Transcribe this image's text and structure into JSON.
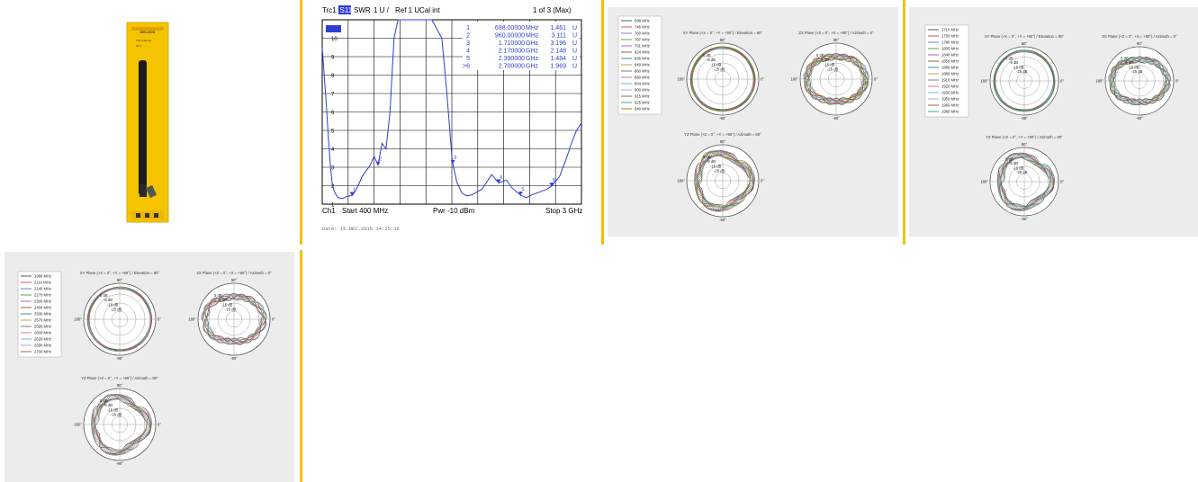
{
  "product": {
    "brand": "DELOCK",
    "name": "LTE Antenna",
    "sub": "88xxx"
  },
  "swr": {
    "header": {
      "trace": "Trc1",
      "param": "S11",
      "format": "SWR",
      "scale": "1 U /",
      "ref": "Ref 1 U",
      "cal": "Cal int",
      "page": "1 of 3 (Max)"
    },
    "footer": {
      "channel": "Ch1",
      "start": "Start 400 MHz",
      "power": "Pwr -10 dBm",
      "stop": "Stop 3 GHz"
    },
    "date": "Date: 15.DEC.2015  14:25:36"
  },
  "chart_data": [
    {
      "type": "line",
      "title": "",
      "xlabel": "",
      "ylabel": "",
      "xlim": [
        400,
        3000
      ],
      "ylim": [
        1,
        11
      ],
      "y_ticks": [
        1,
        2,
        3,
        4,
        5,
        6,
        7,
        8,
        9,
        10
      ],
      "series": [
        {
          "x": [
            400,
            420,
            440,
            460,
            480,
            500,
            520,
            540,
            560,
            600,
            640,
            680,
            698,
            720,
            760,
            800,
            840,
            880,
            920,
            960,
            1000,
            1040,
            1080,
            1120,
            1160,
            1200,
            1260,
            1300,
            1500,
            1600,
            1650,
            1700,
            1710,
            1750,
            1800,
            1850,
            1900,
            2000,
            2100,
            2170,
            2250,
            2300,
            2390,
            2450,
            2500,
            2600,
            2650,
            2700,
            2780,
            2850,
            2900,
            2950,
            3000
          ],
          "y": [
            9.5,
            8,
            6.5,
            4.8,
            3.2,
            2.1,
            1.7,
            1.5,
            1.35,
            1.3,
            1.4,
            1.45,
            1.46,
            1.6,
            2,
            2.5,
            2.8,
            3.1,
            3.6,
            3.11,
            4.3,
            4,
            6,
            10,
            11,
            11,
            11,
            11,
            11,
            10,
            7,
            3.6,
            3.2,
            2.2,
            1.6,
            1.45,
            1.5,
            1.8,
            2.6,
            2.15,
            2.3,
            1.9,
            1.48,
            1.35,
            1.5,
            1.7,
            1.8,
            1.97,
            2.5,
            3.5,
            4.3,
            5,
            5.4
          ]
        }
      ],
      "markers": [
        {
          "id": "1",
          "freq": "698.00000",
          "unit": "MHz",
          "value": "1.461",
          "vunit": "U"
        },
        {
          "id": "2",
          "freq": "960.00000",
          "unit": "MHz",
          "value": "3.111",
          "vunit": "U"
        },
        {
          "id": "3",
          "freq": "1.710000",
          "unit": "GHz",
          "value": "3.196",
          "vunit": "U"
        },
        {
          "id": "4",
          "freq": "2.170000",
          "unit": "GHz",
          "value": "2.148",
          "vunit": "U"
        },
        {
          "id": "5",
          "freq": "2.390000",
          "unit": "GHz",
          "value": "1.484",
          "vunit": "U"
        },
        {
          "id": ">6",
          "freq": "2.700000",
          "unit": "GHz",
          "value": "1.969",
          "vunit": "U"
        }
      ],
      "marker_points": [
        {
          "id": "1",
          "x": 698,
          "y": 1.461
        },
        {
          "id": "2",
          "x": 960,
          "y": 3.111
        },
        {
          "id": "3",
          "x": 1710,
          "y": 3.196
        },
        {
          "id": "4",
          "x": 2170,
          "y": 2.148
        },
        {
          "id": "5",
          "x": 2390,
          "y": 1.484
        },
        {
          "id": "6",
          "x": 2700,
          "y": 1.969
        }
      ]
    },
    {
      "type": "polar",
      "band": "low",
      "legend": [
        "698 MHz",
        "746 MHz",
        "760 MHz",
        "787 MHz",
        "791 MHz",
        "824 MHz",
        "836 MHz",
        "849 MHz",
        "860 MHz",
        "880 MHz",
        "894 MHz",
        "900 MHz",
        "915 MHz",
        "925 MHz",
        "940 MHz"
      ],
      "colors": [
        "#444444",
        "#d04040",
        "#6a6ad0",
        "#40a040",
        "#b050b0",
        "#8a5a2a",
        "#2080a0",
        "#c0a020",
        "#707070",
        "#e06080",
        "#50c0c0",
        "#a0a0e0",
        "#806020",
        "#20a060",
        "#c06000"
      ],
      "plots": [
        {
          "title": "XY Plane (+X = 0°, +Y = +90°) / Elevation = 90°",
          "shape": "round"
        },
        {
          "title": "ZX Plane (+Z = 0°, +X = +90°) / Azimuth = 0°",
          "shape": "lobed"
        },
        {
          "title": "YZ Plane (+Z = 0°, +Y = +90°) / Azimuth = 90°",
          "shape": "wavy"
        }
      ],
      "rings": [
        "5 dB",
        "-5 dB",
        "-15 dB",
        "-25 dB"
      ],
      "angles": {
        "top": "90°",
        "left": "180°",
        "right": "0°",
        "bottom": "-90°"
      }
    },
    {
      "type": "polar",
      "band": "mid",
      "legend": [
        "1710 MHz",
        "1750 MHz",
        "1780 MHz",
        "1805 MHz",
        "1840 MHz",
        "1850 MHz",
        "1880 MHz",
        "1880 MHz",
        "1910 MHz",
        "1920 MHz",
        "1930 MHz",
        "1950 MHz",
        "1960 MHz",
        "1980 MHz"
      ],
      "colors": [
        "#444444",
        "#d04040",
        "#6a6ad0",
        "#40a040",
        "#b050b0",
        "#8a5a2a",
        "#2080a0",
        "#c0a020",
        "#707070",
        "#e06080",
        "#50c0c0",
        "#a0a0e0",
        "#806020",
        "#20a060"
      ],
      "plots": [
        {
          "title": "XY Plane (+X = 0°, +Y = +90°) / Elevation = 90°",
          "shape": "round"
        },
        {
          "title": "ZX Plane (+Z = 0°, +X = +90°) / Azimuth = 0°",
          "shape": "lobed"
        },
        {
          "title": "YZ Plane (+Z = 0°, +Y = +90°) / Azimuth = 90°",
          "shape": "wavy"
        }
      ],
      "rings": [
        "5 dB",
        "-5 dB",
        "-15 dB",
        "-25 dB"
      ],
      "angles": {
        "top": "90°",
        "left": "180°",
        "right": "0°",
        "bottom": "-90°"
      }
    },
    {
      "type": "polar",
      "band": "high",
      "legend": [
        "1990 MHz",
        "2110 MHz",
        "2140 MHz",
        "2170 MHz",
        "2300 MHz",
        "2400 MHz",
        "2500 MHz",
        "2570 MHz",
        "2595 MHz",
        "2600 MHz",
        "2620 MHz",
        "2690 MHz",
        "2700 MHz"
      ],
      "colors": [
        "#444444",
        "#d04040",
        "#6a6ad0",
        "#40a040",
        "#b050b0",
        "#8a5a2a",
        "#2080a0",
        "#c0a020",
        "#707070",
        "#e06080",
        "#50c0c0",
        "#a0a0e0",
        "#806020"
      ],
      "plots": [
        {
          "title": "XY Plane (+X = 0°, +Y = +90°) / Elevation = 90°",
          "shape": "round"
        },
        {
          "title": "ZX Plane (+Z = 0°, +X = +90°) / Azimuth = 0°",
          "shape": "lobed"
        },
        {
          "title": "YZ Plane (+Z = 0°, +Y = +90°) / Azimuth = 90°",
          "shape": "wavy"
        }
      ],
      "rings": [
        "5 dB",
        "-5 dB",
        "-15 dB",
        "-25 dB"
      ],
      "angles": {
        "top": "90°",
        "left": "180°",
        "right": "0°",
        "bottom": "-90°"
      }
    }
  ]
}
